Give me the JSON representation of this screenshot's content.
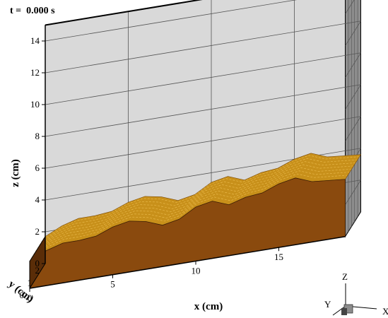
{
  "time_label": "t =  0.000 s",
  "colors": {
    "back_wall": "#d9d9d9",
    "side_wall": "#8d8d8d",
    "grid": "#555555",
    "sediment_top": "#c8901a",
    "sediment_body": "#8a4a0e",
    "sediment_front": "#5a2d08",
    "axis_triad_box": "#8c8c8c"
  },
  "chart_data": {
    "type": "surface",
    "title": "",
    "xlabel": "x (cm)",
    "ylabel": "y (cm)",
    "zlabel": "z (cm)",
    "xlim": [
      0,
      19
    ],
    "ylim": [
      0,
      2
    ],
    "zlim": [
      0,
      15
    ],
    "x_ticks": [
      "0",
      "5",
      "10",
      "15"
    ],
    "y_ticks": [
      "0",
      "1",
      "2"
    ],
    "z_ticks": [
      "0",
      "2",
      "4",
      "6",
      "8",
      "10",
      "12",
      "14"
    ],
    "grid": true,
    "series": [
      {
        "name": "",
        "x": [
          0,
          1,
          2,
          3,
          4,
          5,
          6,
          7,
          8,
          9,
          10,
          11,
          12,
          13,
          14,
          15,
          16,
          17,
          18,
          19
        ],
        "z": [
          1.7,
          2.2,
          2.5,
          2.5,
          2.6,
          3.0,
          3.2,
          3.0,
          2.6,
          2.8,
          3.4,
          3.6,
          3.2,
          3.5,
          3.6,
          4.0,
          4.2,
          3.8,
          3.7,
          3.6
        ]
      }
    ],
    "triad_labels": [
      "X",
      "Y",
      "Z"
    ]
  }
}
